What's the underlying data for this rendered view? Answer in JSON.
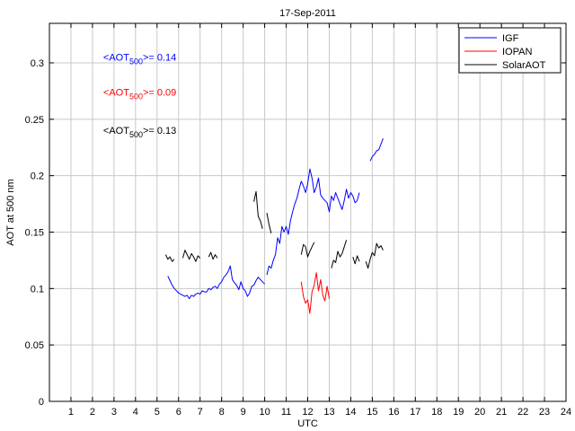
{
  "chart_data": {
    "type": "line",
    "title": "17-Sep-2011",
    "xlabel": "UTC",
    "ylabel": "AOT at 500 nm",
    "xlim": [
      0,
      24
    ],
    "ylim": [
      0,
      0.335
    ],
    "xticks": [
      1,
      2,
      3,
      4,
      5,
      6,
      7,
      8,
      9,
      10,
      11,
      12,
      13,
      14,
      15,
      16,
      17,
      18,
      19,
      20,
      21,
      22,
      23,
      24
    ],
    "yticks": [
      0,
      0.05,
      0.1,
      0.15,
      0.2,
      0.25,
      0.3
    ],
    "ytick_labels": [
      "0",
      "0.05",
      "0.1",
      "0.15",
      "0.2",
      "0.25",
      "0.3"
    ],
    "grid": true,
    "legend_position": "top-right",
    "annotations": [
      {
        "prefix": "<AOT",
        "sub": "500",
        "suffix": ">= 0.14",
        "color": "#0000ff"
      },
      {
        "prefix": "<AOT",
        "sub": "500",
        "suffix": ">= 0.09",
        "color": "#ff0000"
      },
      {
        "prefix": "<AOT",
        "sub": "500",
        "suffix": ">= 0.13",
        "color": "#000000"
      }
    ],
    "series": [
      {
        "name": "IGF",
        "color": "#0000ff",
        "segments": [
          [
            [
              5.5,
              0.111
            ],
            [
              5.6,
              0.107
            ],
            [
              5.7,
              0.103
            ],
            [
              5.8,
              0.1
            ],
            [
              5.9,
              0.098
            ],
            [
              6.0,
              0.096
            ],
            [
              6.1,
              0.095
            ],
            [
              6.2,
              0.094
            ],
            [
              6.3,
              0.093
            ],
            [
              6.4,
              0.094
            ],
            [
              6.5,
              0.091
            ],
            [
              6.6,
              0.094
            ],
            [
              6.7,
              0.093
            ],
            [
              6.8,
              0.095
            ],
            [
              6.9,
              0.096
            ],
            [
              7.0,
              0.095
            ],
            [
              7.1,
              0.098
            ],
            [
              7.2,
              0.097
            ],
            [
              7.3,
              0.097
            ],
            [
              7.4,
              0.1
            ],
            [
              7.5,
              0.099
            ],
            [
              7.6,
              0.101
            ],
            [
              7.7,
              0.102
            ],
            [
              7.8,
              0.1
            ],
            [
              7.9,
              0.104
            ],
            [
              8.0,
              0.106
            ],
            [
              8.1,
              0.11
            ],
            [
              8.2,
              0.112
            ],
            [
              8.3,
              0.115
            ],
            [
              8.4,
              0.12
            ],
            [
              8.5,
              0.108
            ],
            [
              8.6,
              0.105
            ],
            [
              8.7,
              0.103
            ],
            [
              8.8,
              0.099
            ],
            [
              8.9,
              0.106
            ],
            [
              9.0,
              0.1
            ],
            [
              9.1,
              0.098
            ],
            [
              9.2,
              0.093
            ],
            [
              9.3,
              0.096
            ],
            [
              9.4,
              0.102
            ],
            [
              9.5,
              0.103
            ],
            [
              9.6,
              0.107
            ],
            [
              9.7,
              0.11
            ],
            [
              9.8,
              0.108
            ],
            [
              9.9,
              0.106
            ],
            [
              10.0,
              0.104
            ]
          ],
          [
            [
              10.1,
              0.112
            ],
            [
              10.2,
              0.12
            ],
            [
              10.3,
              0.118
            ],
            [
              10.4,
              0.125
            ],
            [
              10.5,
              0.13
            ],
            [
              10.6,
              0.145
            ],
            [
              10.7,
              0.14
            ],
            [
              10.8,
              0.155
            ],
            [
              10.9,
              0.15
            ],
            [
              11.0,
              0.155
            ],
            [
              11.1,
              0.148
            ],
            [
              11.2,
              0.16
            ],
            [
              11.3,
              0.168
            ],
            [
              11.4,
              0.175
            ],
            [
              11.5,
              0.18
            ],
            [
              11.6,
              0.188
            ],
            [
              11.7,
              0.195
            ],
            [
              11.8,
              0.191
            ],
            [
              11.9,
              0.185
            ],
            [
              12.0,
              0.193
            ],
            [
              12.1,
              0.206
            ],
            [
              12.2,
              0.198
            ],
            [
              12.3,
              0.185
            ],
            [
              12.4,
              0.19
            ],
            [
              12.5,
              0.198
            ],
            [
              12.6,
              0.183
            ],
            [
              12.7,
              0.18
            ],
            [
              12.8,
              0.178
            ],
            [
              12.9,
              0.176
            ],
            [
              13.0,
              0.168
            ],
            [
              13.1,
              0.182
            ],
            [
              13.2,
              0.178
            ],
            [
              13.3,
              0.185
            ],
            [
              13.4,
              0.18
            ],
            [
              13.5,
              0.175
            ],
            [
              13.6,
              0.17
            ],
            [
              13.7,
              0.178
            ],
            [
              13.8,
              0.188
            ],
            [
              13.9,
              0.18
            ],
            [
              14.0,
              0.185
            ],
            [
              14.1,
              0.182
            ],
            [
              14.2,
              0.176
            ],
            [
              14.3,
              0.178
            ],
            [
              14.4,
              0.185
            ]
          ],
          [
            [
              14.9,
              0.213
            ],
            [
              15.0,
              0.217
            ],
            [
              15.1,
              0.219
            ],
            [
              15.2,
              0.222
            ],
            [
              15.3,
              0.223
            ],
            [
              15.4,
              0.228
            ],
            [
              15.5,
              0.233
            ]
          ]
        ]
      },
      {
        "name": "IOPAN",
        "color": "#ff0000",
        "segments": [
          [
            [
              11.7,
              0.106
            ],
            [
              11.8,
              0.093
            ],
            [
              11.9,
              0.087
            ],
            [
              12.0,
              0.09
            ],
            [
              12.1,
              0.078
            ],
            [
              12.2,
              0.097
            ],
            [
              12.3,
              0.103
            ],
            [
              12.4,
              0.114
            ],
            [
              12.5,
              0.098
            ],
            [
              12.6,
              0.108
            ],
            [
              12.7,
              0.094
            ],
            [
              12.8,
              0.089
            ],
            [
              12.9,
              0.102
            ],
            [
              13.0,
              0.091
            ]
          ]
        ]
      },
      {
        "name": "SolarAOT",
        "color": "#000000",
        "segments": [
          [
            [
              5.4,
              0.13
            ],
            [
              5.5,
              0.126
            ],
            [
              5.6,
              0.128
            ],
            [
              5.7,
              0.124
            ],
            [
              5.8,
              0.126
            ]
          ],
          [
            [
              6.2,
              0.127
            ],
            [
              6.3,
              0.134
            ],
            [
              6.4,
              0.13
            ],
            [
              6.5,
              0.126
            ],
            [
              6.6,
              0.131
            ],
            [
              6.7,
              0.128
            ],
            [
              6.8,
              0.124
            ],
            [
              6.9,
              0.129
            ],
            [
              7.0,
              0.127
            ]
          ],
          [
            [
              7.4,
              0.128
            ],
            [
              7.5,
              0.132
            ],
            [
              7.6,
              0.126
            ],
            [
              7.7,
              0.13
            ],
            [
              7.8,
              0.127
            ]
          ],
          [
            [
              9.5,
              0.177
            ],
            [
              9.6,
              0.186
            ],
            [
              9.7,
              0.164
            ],
            [
              9.8,
              0.16
            ],
            [
              9.9,
              0.153
            ]
          ],
          [
            [
              10.1,
              0.167
            ],
            [
              10.2,
              0.157
            ],
            [
              10.3,
              0.149
            ]
          ],
          [
            [
              11.7,
              0.13
            ],
            [
              11.8,
              0.139
            ],
            [
              11.9,
              0.137
            ],
            [
              12.0,
              0.128
            ],
            [
              12.1,
              0.133
            ],
            [
              12.2,
              0.137
            ],
            [
              12.3,
              0.141
            ]
          ],
          [
            [
              13.1,
              0.118
            ],
            [
              13.2,
              0.125
            ],
            [
              13.3,
              0.123
            ],
            [
              13.4,
              0.133
            ],
            [
              13.5,
              0.128
            ],
            [
              13.6,
              0.131
            ],
            [
              13.7,
              0.137
            ],
            [
              13.8,
              0.143
            ]
          ],
          [
            [
              14.1,
              0.128
            ],
            [
              14.2,
              0.122
            ],
            [
              14.3,
              0.129
            ],
            [
              14.4,
              0.124
            ]
          ],
          [
            [
              14.7,
              0.124
            ],
            [
              14.8,
              0.118
            ],
            [
              14.9,
              0.126
            ],
            [
              15.0,
              0.132
            ],
            [
              15.1,
              0.129
            ],
            [
              15.2,
              0.14
            ],
            [
              15.3,
              0.136
            ],
            [
              15.4,
              0.138
            ],
            [
              15.5,
              0.134
            ]
          ]
        ]
      }
    ]
  }
}
